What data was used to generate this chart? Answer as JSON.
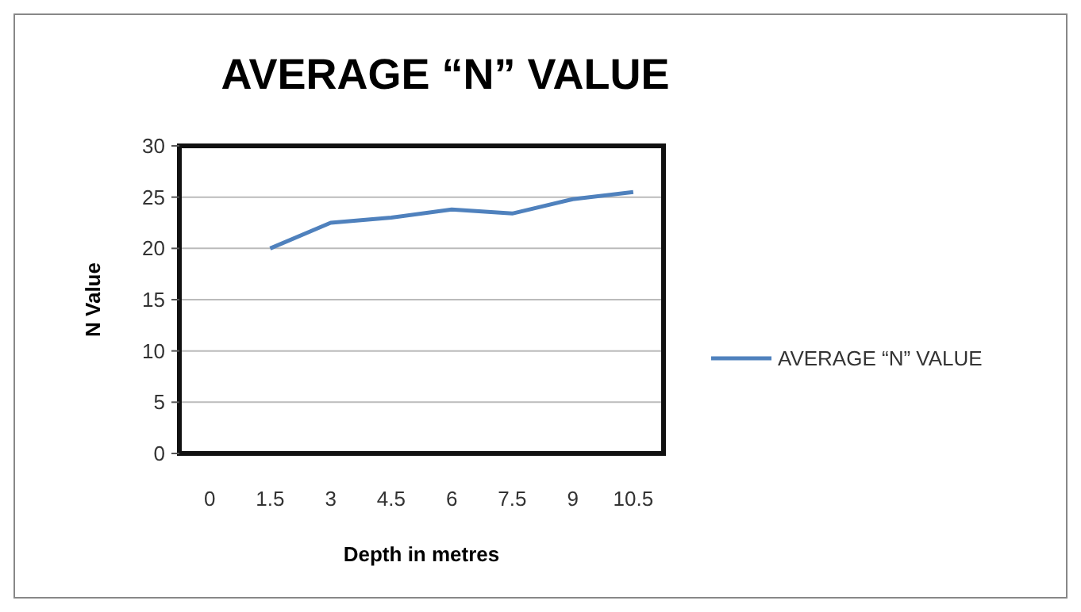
{
  "chart_data": {
    "type": "line",
    "title": "AVERAGE “N” VALUE",
    "xlabel": "Depth in metres",
    "ylabel": "N Value",
    "categories": [
      "0",
      "1.5",
      "3",
      "4.5",
      "6",
      "7.5",
      "9",
      "10.5"
    ],
    "series": [
      {
        "name": "AVERAGE “N” VALUE",
        "color": "#4f81bd",
        "values": [
          null,
          20,
          22.5,
          23,
          23.8,
          23.4,
          24.8,
          25.5
        ]
      }
    ],
    "ylim": [
      0,
      30
    ],
    "yticks": [
      0,
      5,
      10,
      15,
      20,
      25,
      30
    ],
    "grid": "y",
    "legend": "right",
    "marker": "none",
    "line_style": "solid"
  }
}
